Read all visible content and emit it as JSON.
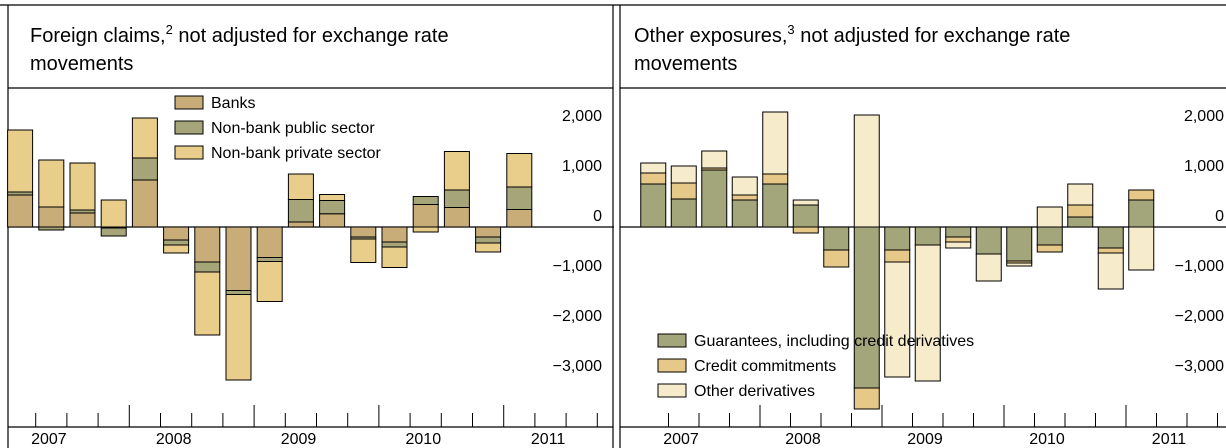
{
  "chart_data": [
    {
      "type": "bar",
      "stacked": true,
      "title": [
        "Foreign claims,",
        "2",
        " not adjusted for exchange rate",
        "movements"
      ],
      "categories": [
        "2007",
        null,
        null,
        null,
        "2008",
        null,
        null,
        null,
        "2009",
        null,
        null,
        null,
        "2010",
        null,
        null,
        null,
        "2011"
      ],
      "series": [
        {
          "name": "Banks",
          "color": "#c9ad78",
          "values": [
            640,
            400,
            280,
            -20,
            940,
            -260,
            -700,
            -1270,
            -610,
            100,
            265,
            -200,
            -300,
            450,
            390,
            -200,
            350
          ]
        },
        {
          "name": "Non-bank public sector",
          "color": "#a6a57a",
          "values": [
            60,
            -60,
            60,
            -160,
            440,
            -100,
            -200,
            -80,
            -80,
            450,
            265,
            -40,
            -100,
            160,
            350,
            -120,
            450
          ]
        },
        {
          "name": "Non-bank private sector",
          "color": "#e9cd8a",
          "values": [
            1240,
            940,
            940,
            540,
            800,
            -160,
            -1260,
            -1710,
            -800,
            510,
            120,
            -470,
            -410,
            -100,
            770,
            -180,
            670
          ]
        }
      ],
      "ylim": [
        -4000,
        2780
      ],
      "yticks": [
        {
          "value": -3000,
          "label": "−3,000"
        },
        {
          "value": -2000,
          "label": "−2,000"
        },
        {
          "value": -1000,
          "label": "−1,000"
        },
        0,
        {
          "value": 1000,
          "label": "1,000"
        },
        {
          "value": 2000,
          "label": "2,000"
        }
      ],
      "legend": "top"
    },
    {
      "type": "bar",
      "stacked": true,
      "title": [
        "Other exposures,",
        "3",
        " not adjusted for exchange rate",
        "movements"
      ],
      "categories": [
        "2007",
        null,
        null,
        null,
        "2008",
        null,
        null,
        null,
        "2009",
        null,
        null,
        null,
        "2010",
        null,
        null,
        null,
        "2011"
      ],
      "series": [
        {
          "name": "Guarantees, including credit derivatives",
          "color": "#a3a57a",
          "values": [
            860,
            560,
            1140,
            540,
            860,
            440,
            -460,
            -3220,
            -460,
            -360,
            -200,
            -540,
            -680,
            -360,
            200,
            -420,
            540
          ]
        },
        {
          "name": "Credit commitments",
          "color": "#e6c889",
          "values": [
            220,
            320,
            40,
            100,
            200,
            -120,
            -340,
            -420,
            -240,
            0,
            -100,
            0,
            -40,
            -140,
            240,
            -100,
            200
          ]
        },
        {
          "name": "Other derivatives",
          "color": "#f6eccb",
          "values": [
            200,
            340,
            340,
            360,
            1240,
            100,
            0,
            2240,
            -2300,
            -2720,
            -120,
            -540,
            -60,
            400,
            420,
            -720,
            -860
          ]
        }
      ],
      "ylim": [
        -4000,
        2780
      ],
      "yticks": [
        {
          "value": -3000,
          "label": "−3,000"
        },
        {
          "value": -2000,
          "label": "−2,000"
        },
        {
          "value": -1000,
          "label": "−1,000"
        },
        0,
        {
          "value": 1000,
          "label": "1,000"
        },
        {
          "value": 2000,
          "label": "2,000"
        }
      ],
      "legend": "bottom-left"
    }
  ]
}
